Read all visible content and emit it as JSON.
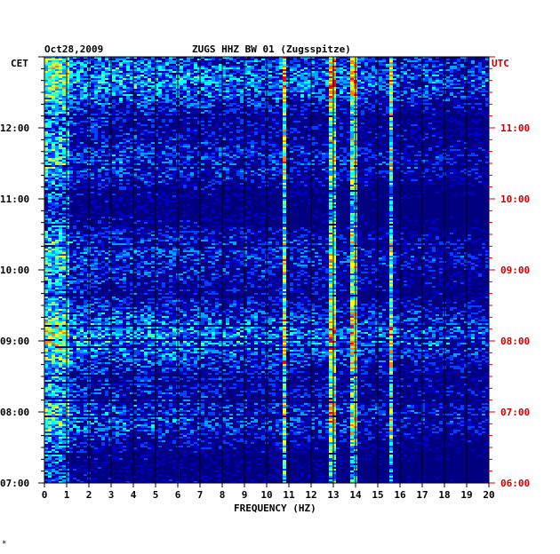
{
  "chart_data": {
    "type": "heatmap",
    "date": "Oct28,2009",
    "title": "ZUGS HHZ BW 01 (Zugsspitze)",
    "left_axis_label": "CET",
    "right_axis_label": "UTC",
    "xlabel": "FREQUENCY (HZ)",
    "xlim": [
      0,
      20
    ],
    "x_ticks": [
      "0",
      "1",
      "2",
      "3",
      "4",
      "5",
      "6",
      "7",
      "8",
      "9",
      "10",
      "11",
      "12",
      "13",
      "14",
      "15",
      "16",
      "17",
      "18",
      "19",
      "20"
    ],
    "cet_ticks": [
      "12:00",
      "11:00",
      "10:00",
      "09:00",
      "08:00",
      "07:00"
    ],
    "utc_ticks": [
      "11:00",
      "10:00",
      "09:00",
      "08:00",
      "07:00",
      "06:00"
    ],
    "time_range_cet": [
      "07:00",
      "13:00"
    ],
    "grid": true,
    "colorscale": [
      "#000080",
      "#0000c8",
      "#0040ff",
      "#00a0ff",
      "#00ffff",
      "#80ff80",
      "#ffff00",
      "#ff8000",
      "#ff0000"
    ],
    "dominant_spectral_lines_hz": [
      10.8,
      13.0,
      13.9,
      15.6
    ],
    "corner_mark": "*"
  },
  "colors": {
    "left_axis": "#000000",
    "right_axis": "#cc0000",
    "background": "#ffffff"
  }
}
